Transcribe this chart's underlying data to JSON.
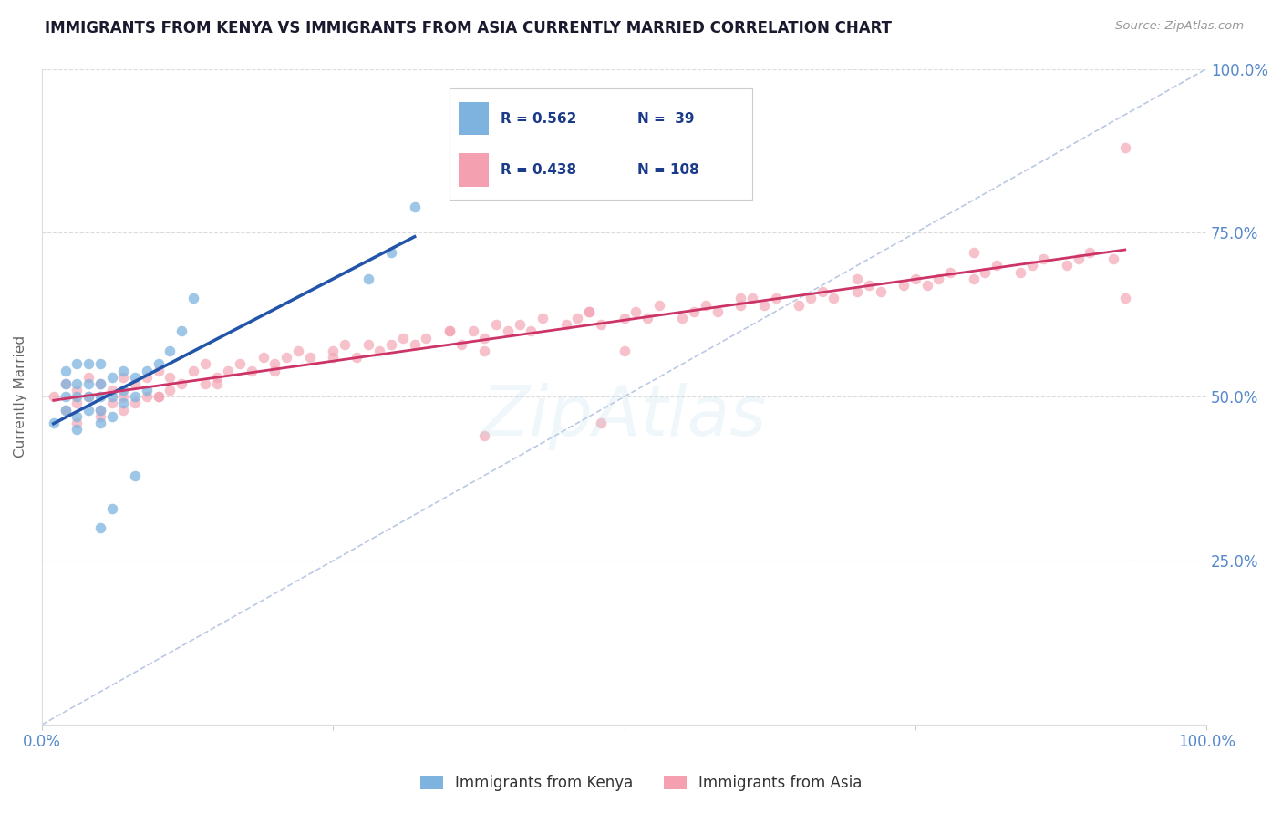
{
  "title": "IMMIGRANTS FROM KENYA VS IMMIGRANTS FROM ASIA CURRENTLY MARRIED CORRELATION CHART",
  "source": "Source: ZipAtlas.com",
  "ylabel": "Currently Married",
  "xlim": [
    0.0,
    1.0
  ],
  "ylim": [
    0.0,
    1.0
  ],
  "xticks": [
    0.0,
    0.25,
    0.5,
    0.75,
    1.0
  ],
  "yticks": [
    0.0,
    0.25,
    0.5,
    0.75,
    1.0
  ],
  "kenya_R": 0.562,
  "kenya_N": 39,
  "asia_R": 0.438,
  "asia_N": 108,
  "kenya_color": "#7EB3E0",
  "asia_color": "#F4A0B0",
  "kenya_scatter_alpha": 0.75,
  "asia_scatter_alpha": 0.65,
  "marker_size": 70,
  "background_color": "#FFFFFF",
  "grid_color": "#CCCCCC",
  "title_color": "#1a1a2e",
  "legend_text_color": "#1a3a8a",
  "ylabel_color": "#666666",
  "tick_color": "#5588CC",
  "kenya_line_color": "#2255AA",
  "asia_line_color": "#CC3366",
  "diag_color": "#AABBDD",
  "kenya_x": [
    0.01,
    0.02,
    0.02,
    0.02,
    0.02,
    0.03,
    0.03,
    0.03,
    0.03,
    0.03,
    0.04,
    0.04,
    0.04,
    0.04,
    0.05,
    0.05,
    0.05,
    0.05,
    0.05,
    0.06,
    0.06,
    0.06,
    0.07,
    0.07,
    0.07,
    0.08,
    0.08,
    0.09,
    0.09,
    0.1,
    0.11,
    0.12,
    0.13,
    0.28,
    0.3,
    0.32,
    0.05,
    0.06,
    0.08
  ],
  "kenya_y": [
    0.46,
    0.48,
    0.5,
    0.52,
    0.54,
    0.45,
    0.47,
    0.5,
    0.52,
    0.55,
    0.48,
    0.5,
    0.52,
    0.55,
    0.46,
    0.48,
    0.5,
    0.52,
    0.55,
    0.47,
    0.5,
    0.53,
    0.49,
    0.51,
    0.54,
    0.5,
    0.53,
    0.51,
    0.54,
    0.55,
    0.57,
    0.6,
    0.65,
    0.68,
    0.72,
    0.79,
    0.3,
    0.33,
    0.38
  ],
  "asia_x": [
    0.01,
    0.02,
    0.02,
    0.03,
    0.03,
    0.04,
    0.04,
    0.05,
    0.05,
    0.06,
    0.06,
    0.07,
    0.07,
    0.08,
    0.08,
    0.09,
    0.09,
    0.1,
    0.1,
    0.11,
    0.11,
    0.12,
    0.13,
    0.14,
    0.14,
    0.15,
    0.16,
    0.17,
    0.18,
    0.19,
    0.2,
    0.21,
    0.22,
    0.23,
    0.25,
    0.26,
    0.27,
    0.28,
    0.29,
    0.3,
    0.31,
    0.32,
    0.33,
    0.35,
    0.36,
    0.37,
    0.38,
    0.39,
    0.4,
    0.41,
    0.42,
    0.43,
    0.45,
    0.46,
    0.47,
    0.48,
    0.5,
    0.51,
    0.52,
    0.53,
    0.55,
    0.56,
    0.57,
    0.58,
    0.6,
    0.61,
    0.62,
    0.63,
    0.65,
    0.66,
    0.67,
    0.68,
    0.7,
    0.71,
    0.72,
    0.74,
    0.75,
    0.76,
    0.77,
    0.78,
    0.8,
    0.81,
    0.82,
    0.84,
    0.85,
    0.86,
    0.88,
    0.89,
    0.9,
    0.92,
    0.03,
    0.05,
    0.07,
    0.1,
    0.15,
    0.2,
    0.25,
    0.35,
    0.47,
    0.6,
    0.7,
    0.8,
    0.38,
    0.48,
    0.38,
    0.5,
    0.93,
    0.93
  ],
  "asia_y": [
    0.5,
    0.48,
    0.52,
    0.49,
    0.51,
    0.5,
    0.53,
    0.48,
    0.52,
    0.49,
    0.51,
    0.5,
    0.53,
    0.49,
    0.52,
    0.5,
    0.53,
    0.5,
    0.54,
    0.51,
    0.53,
    0.52,
    0.54,
    0.52,
    0.55,
    0.53,
    0.54,
    0.55,
    0.54,
    0.56,
    0.55,
    0.56,
    0.57,
    0.56,
    0.57,
    0.58,
    0.56,
    0.58,
    0.57,
    0.58,
    0.59,
    0.58,
    0.59,
    0.6,
    0.58,
    0.6,
    0.59,
    0.61,
    0.6,
    0.61,
    0.6,
    0.62,
    0.61,
    0.62,
    0.63,
    0.61,
    0.62,
    0.63,
    0.62,
    0.64,
    0.62,
    0.63,
    0.64,
    0.63,
    0.64,
    0.65,
    0.64,
    0.65,
    0.64,
    0.65,
    0.66,
    0.65,
    0.66,
    0.67,
    0.66,
    0.67,
    0.68,
    0.67,
    0.68,
    0.69,
    0.68,
    0.69,
    0.7,
    0.69,
    0.7,
    0.71,
    0.7,
    0.71,
    0.72,
    0.71,
    0.46,
    0.47,
    0.48,
    0.5,
    0.52,
    0.54,
    0.56,
    0.6,
    0.63,
    0.65,
    0.68,
    0.72,
    0.44,
    0.46,
    0.57,
    0.57,
    0.88,
    0.65
  ]
}
